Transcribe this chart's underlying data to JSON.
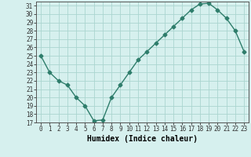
{
  "title": "",
  "xlabel": "Humidex (Indice chaleur)",
  "ylabel": "",
  "x": [
    0,
    1,
    2,
    3,
    4,
    5,
    6,
    7,
    8,
    9,
    10,
    11,
    12,
    13,
    14,
    15,
    16,
    17,
    18,
    19,
    20,
    21,
    22,
    23
  ],
  "y": [
    25,
    23,
    22,
    21.5,
    20,
    19,
    17.2,
    17.3,
    20,
    21.5,
    23,
    24.5,
    25.5,
    26.5,
    27.5,
    28.5,
    29.5,
    30.5,
    31.2,
    31.3,
    30.5,
    29.5,
    28,
    25.5
  ],
  "ylim": [
    17,
    31.5
  ],
  "xlim": [
    -0.5,
    23.5
  ],
  "yticks": [
    17,
    18,
    19,
    20,
    21,
    22,
    23,
    24,
    25,
    26,
    27,
    28,
    29,
    30,
    31
  ],
  "xticks": [
    0,
    1,
    2,
    3,
    4,
    5,
    6,
    7,
    8,
    9,
    10,
    11,
    12,
    13,
    14,
    15,
    16,
    17,
    18,
    19,
    20,
    21,
    22,
    23
  ],
  "line_color": "#2e7d6b",
  "marker": "D",
  "marker_size": 2.5,
  "bg_color": "#d6f0ee",
  "grid_color": "#aad5d0",
  "axis_bg": "#d6f0ee",
  "xlabel_fontsize": 7,
  "tick_fontsize": 5.5,
  "line_width": 1.0
}
